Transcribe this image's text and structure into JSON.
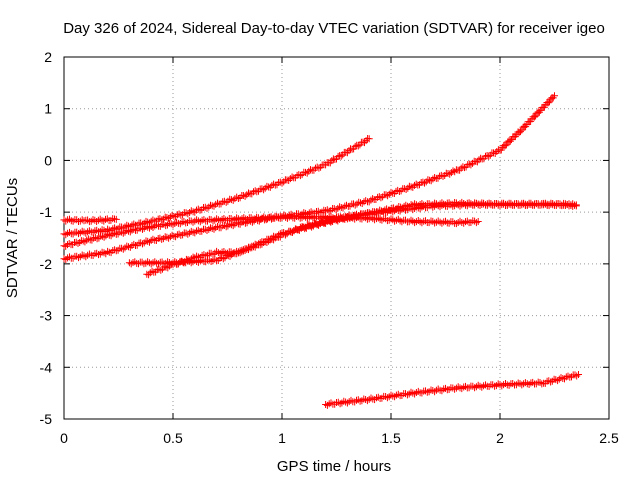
{
  "chart_data": {
    "type": "scatter",
    "title": "Day 326 of 2024, Sidereal Day-to-day VTEC variation (SDTVAR) for receiver igeo",
    "xlabel": "GPS time / hours",
    "ylabel": "SDTVAR / TECUs",
    "xlim": [
      0,
      2.5
    ],
    "ylim": [
      -5,
      2
    ],
    "xticks": [
      0,
      0.5,
      1,
      1.5,
      2,
      2.5
    ],
    "xtick_labels": [
      "0",
      "0.5",
      "1",
      "1.5",
      "2",
      "2.5"
    ],
    "yticks": [
      -5,
      -4,
      -3,
      -2,
      -1,
      0,
      1,
      2
    ],
    "ytick_labels": [
      "-5",
      "-4",
      "-3",
      "-2",
      "-1",
      "0",
      "1",
      "2"
    ],
    "grid": true,
    "marker": "plus",
    "color": "#ff0000",
    "series": [
      {
        "name": "arc-1",
        "x": [
          0.0,
          0.1,
          0.24
        ],
        "y": [
          -1.15,
          -1.17,
          -1.14
        ]
      },
      {
        "name": "arc-2",
        "x": [
          0.0,
          0.2,
          0.4,
          0.6,
          0.8,
          1.0,
          1.2,
          1.4
        ],
        "y": [
          -1.42,
          -1.35,
          -1.18,
          -0.98,
          -0.72,
          -0.42,
          -0.08,
          0.42
        ]
      },
      {
        "name": "arc-3",
        "x": [
          0.0,
          0.2,
          0.4,
          0.6,
          0.8,
          1.0,
          1.2,
          1.4,
          1.6,
          1.8,
          1.9
        ],
        "y": [
          -1.65,
          -1.45,
          -1.28,
          -1.17,
          -1.13,
          -1.1,
          -1.1,
          -1.12,
          -1.18,
          -1.2,
          -1.18
        ]
      },
      {
        "name": "arc-4",
        "x": [
          0.0,
          0.2,
          0.4,
          0.6,
          0.8,
          1.0,
          1.2,
          1.4,
          1.6,
          1.8,
          2.0,
          2.1,
          2.25
        ],
        "y": [
          -1.9,
          -1.78,
          -1.55,
          -1.38,
          -1.22,
          -1.08,
          -0.98,
          -0.78,
          -0.5,
          -0.2,
          0.2,
          0.6,
          1.25
        ]
      },
      {
        "name": "arc-5",
        "x": [
          0.3,
          0.5,
          0.7,
          0.9,
          1.1,
          1.3,
          1.5,
          1.7,
          1.9,
          2.1,
          2.3,
          2.35
        ],
        "y": [
          -1.98,
          -1.98,
          -1.93,
          -1.62,
          -1.28,
          -1.08,
          -0.98,
          -0.88,
          -0.85,
          -0.85,
          -0.85,
          -0.88
        ]
      },
      {
        "name": "arc-6",
        "x": [
          0.38,
          0.5,
          0.6,
          0.7,
          0.8,
          0.9,
          1.0,
          1.2,
          1.4,
          1.6,
          1.8,
          2.0,
          2.2,
          2.35
        ],
        "y": [
          -2.2,
          -2.02,
          -1.88,
          -1.78,
          -1.78,
          -1.6,
          -1.42,
          -1.2,
          -1.02,
          -0.86,
          -0.83,
          -0.85,
          -0.85,
          -0.86
        ]
      },
      {
        "name": "arc-7",
        "x": [
          1.2,
          1.4,
          1.6,
          1.8,
          2.0,
          2.2,
          2.36
        ],
        "y": [
          -4.72,
          -4.62,
          -4.5,
          -4.4,
          -4.34,
          -4.3,
          -4.14
        ]
      }
    ]
  }
}
